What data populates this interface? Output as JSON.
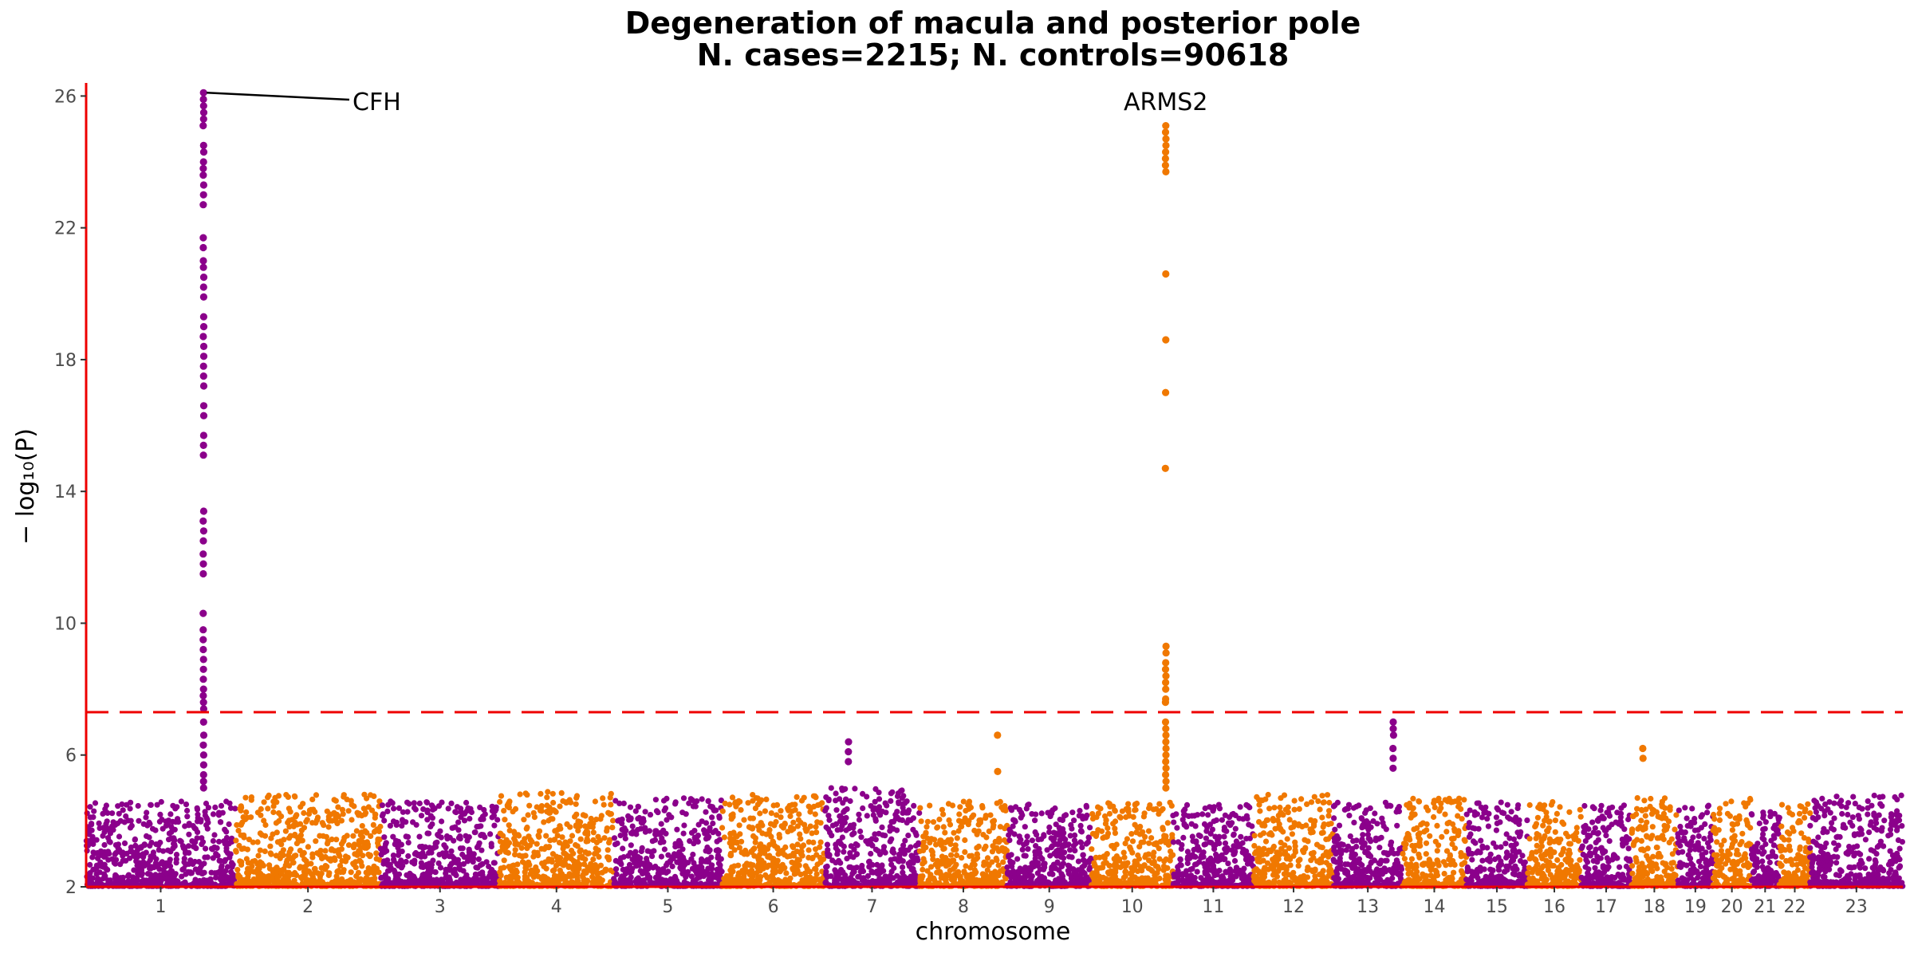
{
  "chart_data": {
    "type": "scatter",
    "title_line1": "Degeneration of macula and posterior pole",
    "title_line2": "N. cases=2215; N. controls=90618",
    "xlabel": "chromosome",
    "ylabel": "− log₁₀(P)",
    "ylim": [
      2,
      26.3
    ],
    "y_ticks": [
      2,
      6,
      10,
      14,
      18,
      22,
      26
    ],
    "genome_wide_significance": 7.3,
    "colors": {
      "odd": "#8b008b",
      "even": "#f07800",
      "line": "#ee0000",
      "axis": "#ee0000"
    },
    "chromosomes": [
      {
        "label": "1",
        "length": 249,
        "base_max": 4.6
      },
      {
        "label": "2",
        "length": 243,
        "base_max": 4.8
      },
      {
        "label": "3",
        "length": 198,
        "base_max": 4.6
      },
      {
        "label": "4",
        "length": 191,
        "base_max": 4.9
      },
      {
        "label": "5",
        "length": 181,
        "base_max": 4.7
      },
      {
        "label": "6",
        "length": 171,
        "base_max": 4.8
      },
      {
        "label": "7",
        "length": 159,
        "base_max": 5.0
      },
      {
        "label": "8",
        "length": 146,
        "base_max": 4.6
      },
      {
        "label": "9",
        "length": 141,
        "base_max": 4.5
      },
      {
        "label": "10",
        "length": 136,
        "base_max": 4.6
      },
      {
        "label": "11",
        "length": 135,
        "base_max": 4.5
      },
      {
        "label": "12",
        "length": 133,
        "base_max": 4.8
      },
      {
        "label": "13",
        "length": 115,
        "base_max": 4.6
      },
      {
        "label": "14",
        "length": 107,
        "base_max": 4.7
      },
      {
        "label": "15",
        "length": 102,
        "base_max": 4.6
      },
      {
        "label": "16",
        "length": 90,
        "base_max": 4.6
      },
      {
        "label": "17",
        "length": 83,
        "base_max": 4.5
      },
      {
        "label": "18",
        "length": 78,
        "base_max": 4.7
      },
      {
        "label": "19",
        "length": 59,
        "base_max": 4.6
      },
      {
        "label": "20",
        "length": 63,
        "base_max": 4.7
      },
      {
        "label": "21",
        "length": 48,
        "base_max": 4.3
      },
      {
        "label": "22",
        "length": 51,
        "base_max": 4.6
      },
      {
        "label": "23",
        "length": 155,
        "base_max": 4.8
      }
    ],
    "peaks": [
      {
        "chrom": "1",
        "pos": 196,
        "max": 26.1,
        "values": [
          26.1,
          25.9,
          25.7,
          25.5,
          25.3,
          25.1,
          24.5,
          24.3,
          24.0,
          23.8,
          23.6,
          23.3,
          23.0,
          22.7,
          21.7,
          21.4,
          21.0,
          20.8,
          20.5,
          20.2,
          19.9,
          19.3,
          19.0,
          18.7,
          18.4,
          18.1,
          17.8,
          17.5,
          17.2,
          16.6,
          16.3,
          15.7,
          15.4,
          15.1,
          13.4,
          13.1,
          12.8,
          12.5,
          12.1,
          11.8,
          11.5,
          10.3,
          9.8,
          9.5,
          9.2,
          8.9,
          8.6,
          8.3,
          8.0,
          7.8,
          7.6,
          7.4,
          7.0,
          6.6,
          6.3,
          6.0,
          5.7,
          5.4,
          5.2,
          5.0
        ]
      },
      {
        "chrom": "10",
        "pos": 124,
        "max": 25.1,
        "values": [
          25.1,
          24.9,
          24.7,
          24.5,
          24.3,
          24.1,
          23.9,
          23.7,
          20.6,
          18.6,
          17.0,
          14.7,
          9.3,
          9.1,
          8.8,
          8.6,
          8.4,
          8.2,
          8.0,
          7.7,
          7.6,
          7.0,
          6.8,
          6.6,
          6.4,
          6.2,
          6.0,
          5.8,
          5.6,
          5.4,
          5.2,
          5.0
        ]
      },
      {
        "chrom": "13",
        "pos": 100,
        "max": 7.0,
        "values": [
          7.0,
          6.8,
          6.6,
          6.2,
          5.9,
          5.6
        ]
      },
      {
        "chrom": "7",
        "pos": 40,
        "max": 6.4,
        "values": [
          6.4,
          6.1,
          5.8
        ]
      },
      {
        "chrom": "8",
        "pos": 130,
        "max": 6.6,
        "values": [
          6.6,
          5.5
        ]
      },
      {
        "chrom": "18",
        "pos": 20,
        "max": 6.2,
        "values": [
          6.2,
          5.9
        ]
      }
    ],
    "annotations": [
      {
        "label": "CFH",
        "chrom": "1",
        "pos": 196,
        "y": 26.1
      },
      {
        "label": "ARMS2",
        "chrom": "10",
        "pos": 124,
        "y": 25.1
      }
    ]
  }
}
